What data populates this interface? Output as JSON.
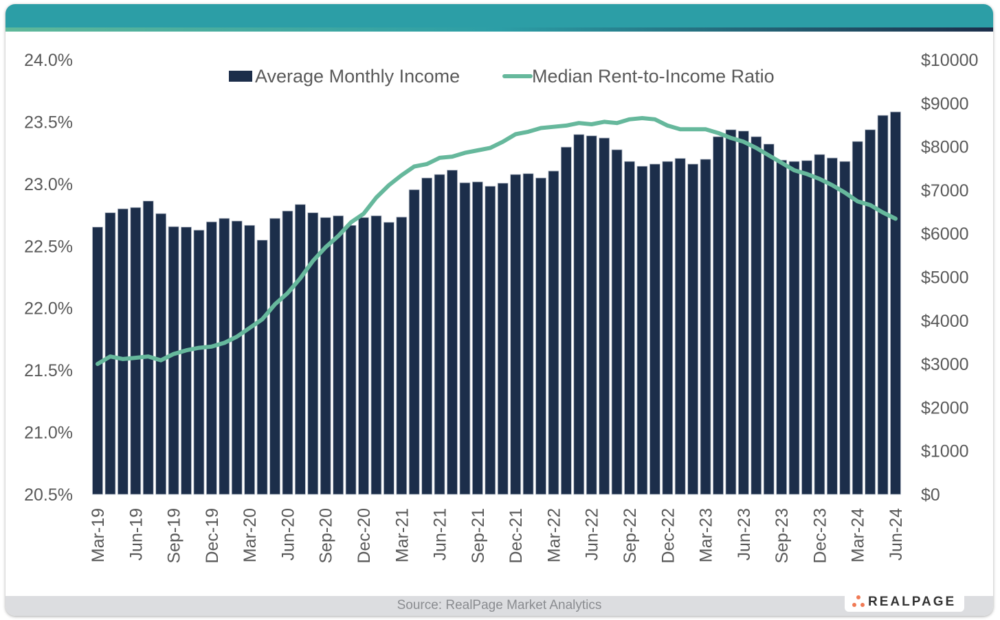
{
  "source": "Source: RealPage Market Analytics",
  "logo_text": "REALPAGE",
  "colors": {
    "bar": "#1c2e4a",
    "line": "#66b89c",
    "header": "#2c9ea6",
    "logo_dots": "#f07a55"
  },
  "chart_data": {
    "type": "bar+line",
    "grid": false,
    "legend_placement": "top-center",
    "categories": [
      "Mar-19",
      "Apr-19",
      "May-19",
      "Jun-19",
      "Jul-19",
      "Aug-19",
      "Sep-19",
      "Oct-19",
      "Nov-19",
      "Dec-19",
      "Jan-20",
      "Feb-20",
      "Mar-20",
      "Apr-20",
      "May-20",
      "Jun-20",
      "Jul-20",
      "Aug-20",
      "Sep-20",
      "Oct-20",
      "Nov-20",
      "Dec-20",
      "Jan-21",
      "Feb-21",
      "Mar-21",
      "Apr-21",
      "May-21",
      "Jun-21",
      "Jul-21",
      "Aug-21",
      "Sep-21",
      "Oct-21",
      "Nov-21",
      "Dec-21",
      "Jan-22",
      "Feb-22",
      "Mar-22",
      "Apr-22",
      "May-22",
      "Jun-22",
      "Jul-22",
      "Aug-22",
      "Sep-22",
      "Oct-22",
      "Nov-22",
      "Dec-22",
      "Jan-23",
      "Feb-23",
      "Mar-23",
      "Apr-23",
      "May-23",
      "Jun-23",
      "Jul-23",
      "Aug-23",
      "Sep-23",
      "Oct-23",
      "Nov-23",
      "Dec-23",
      "Jan-24",
      "Feb-24",
      "Mar-24",
      "Apr-24",
      "May-24",
      "Jun-24"
    ],
    "tick_labels": [
      "Mar-19",
      "Jun-19",
      "Sep-19",
      "Dec-19",
      "Mar-20",
      "Jun-20",
      "Sep-20",
      "Dec-20",
      "Mar-21",
      "Jun-21",
      "Sep-21",
      "Dec-21",
      "Mar-22",
      "Jun-22",
      "Sep-22",
      "Dec-22",
      "Mar-23",
      "Jun-23",
      "Sep-23",
      "Dec-23",
      "Mar-24",
      "Jun-24"
    ],
    "y_left": {
      "range": [
        20.5,
        24.0
      ],
      "ticks": [
        "20.5%",
        "21.0%",
        "21.5%",
        "22.0%",
        "22.5%",
        "23.0%",
        "23.5%",
        "24.0%"
      ]
    },
    "y_right": {
      "range": [
        0,
        10000
      ],
      "ticks": [
        "$0",
        "$1000",
        "$2000",
        "$3000",
        "$4000",
        "$5000",
        "$6000",
        "$7000",
        "$8000",
        "$9000",
        "$10000"
      ]
    },
    "series": [
      {
        "name": "Average Monthly Income",
        "type": "bar",
        "axis": "right",
        "values": [
          6150,
          6480,
          6570,
          6600,
          6750,
          6460,
          6160,
          6150,
          6080,
          6270,
          6350,
          6290,
          6190,
          5850,
          6350,
          6520,
          6670,
          6480,
          6370,
          6410,
          6190,
          6370,
          6410,
          6260,
          6380,
          7010,
          7280,
          7360,
          7460,
          7170,
          7190,
          7090,
          7160,
          7360,
          7380,
          7280,
          7440,
          7990,
          8280,
          8250,
          8200,
          7930,
          7660,
          7550,
          7600,
          7660,
          7730,
          7600,
          7710,
          8230,
          8390,
          8360,
          8230,
          8060,
          7690,
          7660,
          7680,
          7820,
          7740,
          7660,
          8120,
          8390,
          8720,
          8800
        ]
      },
      {
        "name": "Median Rent-to-Income Ratio",
        "type": "line",
        "axis": "left",
        "values": [
          21.55,
          21.61,
          21.59,
          21.6,
          21.61,
          21.58,
          21.63,
          21.66,
          21.68,
          21.69,
          21.72,
          21.77,
          21.84,
          21.91,
          22.03,
          22.12,
          22.24,
          22.38,
          22.49,
          22.58,
          22.69,
          22.76,
          22.89,
          22.99,
          23.07,
          23.14,
          23.16,
          23.21,
          23.22,
          23.25,
          23.27,
          23.29,
          23.34,
          23.4,
          23.42,
          23.45,
          23.46,
          23.47,
          23.49,
          23.48,
          23.5,
          23.49,
          23.52,
          23.53,
          23.52,
          23.47,
          23.44,
          23.44,
          23.44,
          23.41,
          23.37,
          23.34,
          23.29,
          23.23,
          23.17,
          23.11,
          23.08,
          23.04,
          22.99,
          22.93,
          22.86,
          22.83,
          22.77,
          22.72
        ]
      }
    ]
  }
}
